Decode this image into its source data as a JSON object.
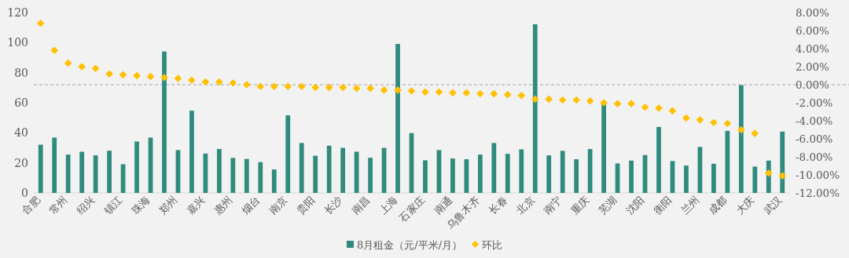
{
  "chart_data": {
    "type": "bar",
    "categories": [
      "合肥",
      null,
      "常州",
      null,
      "绍兴",
      null,
      "镇江",
      null,
      "珠海",
      null,
      "郑州",
      null,
      "嘉兴",
      null,
      "惠州",
      null,
      "烟台",
      null,
      "南京",
      null,
      "贵阳",
      null,
      "长沙",
      null,
      "南昌",
      null,
      "上海",
      null,
      "石家庄",
      null,
      "南通",
      null,
      "乌鲁木齐",
      null,
      "长春",
      null,
      "北京",
      null,
      "南宁",
      null,
      "重庆",
      null,
      "芜湖",
      null,
      "沈阳",
      null,
      "衡阳",
      null,
      "兰州",
      null,
      "成都",
      null,
      "大庆",
      null,
      "武汉"
    ],
    "series": [
      {
        "name": "8月租金（元/平米/月）",
        "color": "#2e8b7e",
        "values": [
          32.1,
          36.8,
          25.5,
          27.4,
          25.0,
          28.1,
          19.1,
          34.2,
          36.8,
          94.1,
          28.5,
          54.7,
          26.2,
          29.2,
          23.3,
          22.6,
          20.5,
          15.6,
          51.6,
          33.2,
          24.7,
          31.4,
          30.0,
          27.4,
          23.4,
          30.0,
          99.1,
          39.8,
          21.7,
          28.5,
          22.9,
          22.4,
          25.5,
          33.2,
          26.0,
          29.0,
          112.2,
          25.0,
          28.0,
          22.4,
          29.2,
          59.5,
          19.6,
          21.5,
          25.2,
          43.9,
          21.2,
          18.2,
          30.6,
          19.4,
          41.3,
          71.7,
          17.5,
          21.5,
          40.8
        ]
      },
      {
        "name": "环比",
        "type": "scatter",
        "axis": "y2",
        "marker": "diamond",
        "color": "#ffc000",
        "values": [
          6.8,
          3.8,
          2.4,
          2.0,
          1.8,
          1.2,
          1.1,
          1.0,
          0.9,
          0.8,
          0.7,
          0.5,
          0.3,
          0.3,
          0.2,
          0.0,
          -0.2,
          -0.2,
          -0.2,
          -0.2,
          -0.3,
          -0.3,
          -0.3,
          -0.4,
          -0.4,
          -0.6,
          -0.6,
          -0.7,
          -0.8,
          -0.8,
          -0.9,
          -0.9,
          -1.0,
          -1.0,
          -1.1,
          -1.2,
          -1.6,
          -1.6,
          -1.7,
          -1.7,
          -1.8,
          -2.0,
          -2.1,
          -2.1,
          -2.5,
          -2.6,
          -2.9,
          -3.7,
          -3.9,
          -4.2,
          -4.3,
          -5.0,
          -5.4,
          -9.8,
          -10.1
        ]
      }
    ],
    "ylim": [
      0,
      120
    ],
    "yticks": [
      0,
      20,
      40,
      60,
      80,
      100,
      120
    ],
    "y2lim": [
      -12,
      8
    ],
    "y2ticks": [
      {
        "value": -12,
        "label": "-12.00%"
      },
      {
        "value": -10,
        "label": "-10.00%"
      },
      {
        "value": -8,
        "label": "-8.00%"
      },
      {
        "value": -6,
        "label": "-6.00%"
      },
      {
        "value": -4,
        "label": "-4.00%"
      },
      {
        "value": -2,
        "label": "-2.00%"
      },
      {
        "value": 0,
        "label": "0.00%"
      },
      {
        "value": 2,
        "label": "2.00%"
      },
      {
        "value": 4,
        "label": "4.00%"
      },
      {
        "value": 6,
        "label": "6.00%"
      },
      {
        "value": 8,
        "label": "8.00%"
      }
    ],
    "ref_lines": [
      {
        "axis": "y2",
        "value": 0,
        "color": "#a6a6a6",
        "line_style": "dashed"
      }
    ],
    "legend": "bottom"
  }
}
